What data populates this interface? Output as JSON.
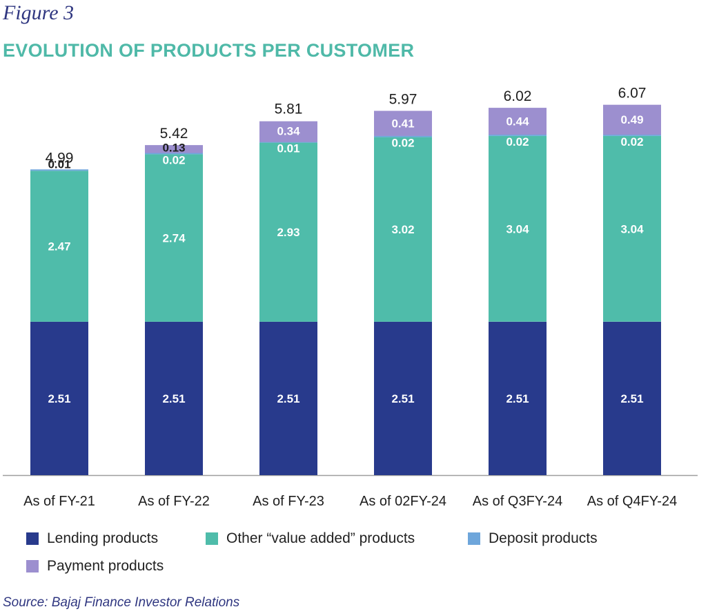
{
  "header": {
    "figure_label": "Figure 3",
    "title": "EVOLUTION OF PRODUCTS PER CUSTOMER"
  },
  "source": "Source: Bajaj Finance Investor Relations",
  "colors": {
    "lending": "#283a8c",
    "value_added": "#4fbcaa",
    "deposit": "#6ea6db",
    "payment": "#9c8fcf",
    "axis": "#9e9e9e"
  },
  "chart_data": {
    "type": "bar",
    "stacked": true,
    "title": "EVOLUTION OF PRODUCTS PER CUSTOMER",
    "xlabel": "",
    "ylabel": "",
    "ylim": [
      0,
      6.5
    ],
    "grid": false,
    "legend_position": "bottom",
    "categories": [
      "As of FY-21",
      "As of FY-22",
      "As of FY-23",
      "As of 02FY-24",
      "As of Q3FY-24",
      "As of Q4FY-24"
    ],
    "series": [
      {
        "name": "Lending products",
        "key": "lending",
        "values": [
          2.51,
          2.51,
          2.51,
          2.51,
          2.51,
          2.51
        ],
        "labels": [
          "2.51",
          "2.51",
          "2.51",
          "2.51",
          "2.51",
          "2.51"
        ]
      },
      {
        "name": "Other “value added” products",
        "key": "value_added",
        "values": [
          2.47,
          2.74,
          2.93,
          3.02,
          3.04,
          3.04
        ],
        "labels": [
          "2.47",
          "2.74",
          "2.93",
          "3.02",
          "3.04",
          "3.04"
        ]
      },
      {
        "name": "Deposit products",
        "key": "deposit",
        "values": [
          0.01,
          0.02,
          0.01,
          0.02,
          0.02,
          0.02
        ],
        "labels": [
          "0.01",
          "0.02",
          "0.01",
          "0.02",
          "0.02",
          "0.02"
        ]
      },
      {
        "name": "Payment products",
        "key": "payment",
        "values": [
          0.0,
          0.13,
          0.34,
          0.41,
          0.44,
          0.49
        ],
        "labels": [
          "",
          "0.13",
          "0.34",
          "0.41",
          "0.44",
          "0.49"
        ]
      }
    ],
    "totals": [
      4.99,
      5.42,
      5.81,
      5.97,
      6.02,
      6.07
    ],
    "total_labels": [
      "4.99",
      "5.42",
      "5.81",
      "5.97",
      "6.02",
      "6.07"
    ]
  }
}
